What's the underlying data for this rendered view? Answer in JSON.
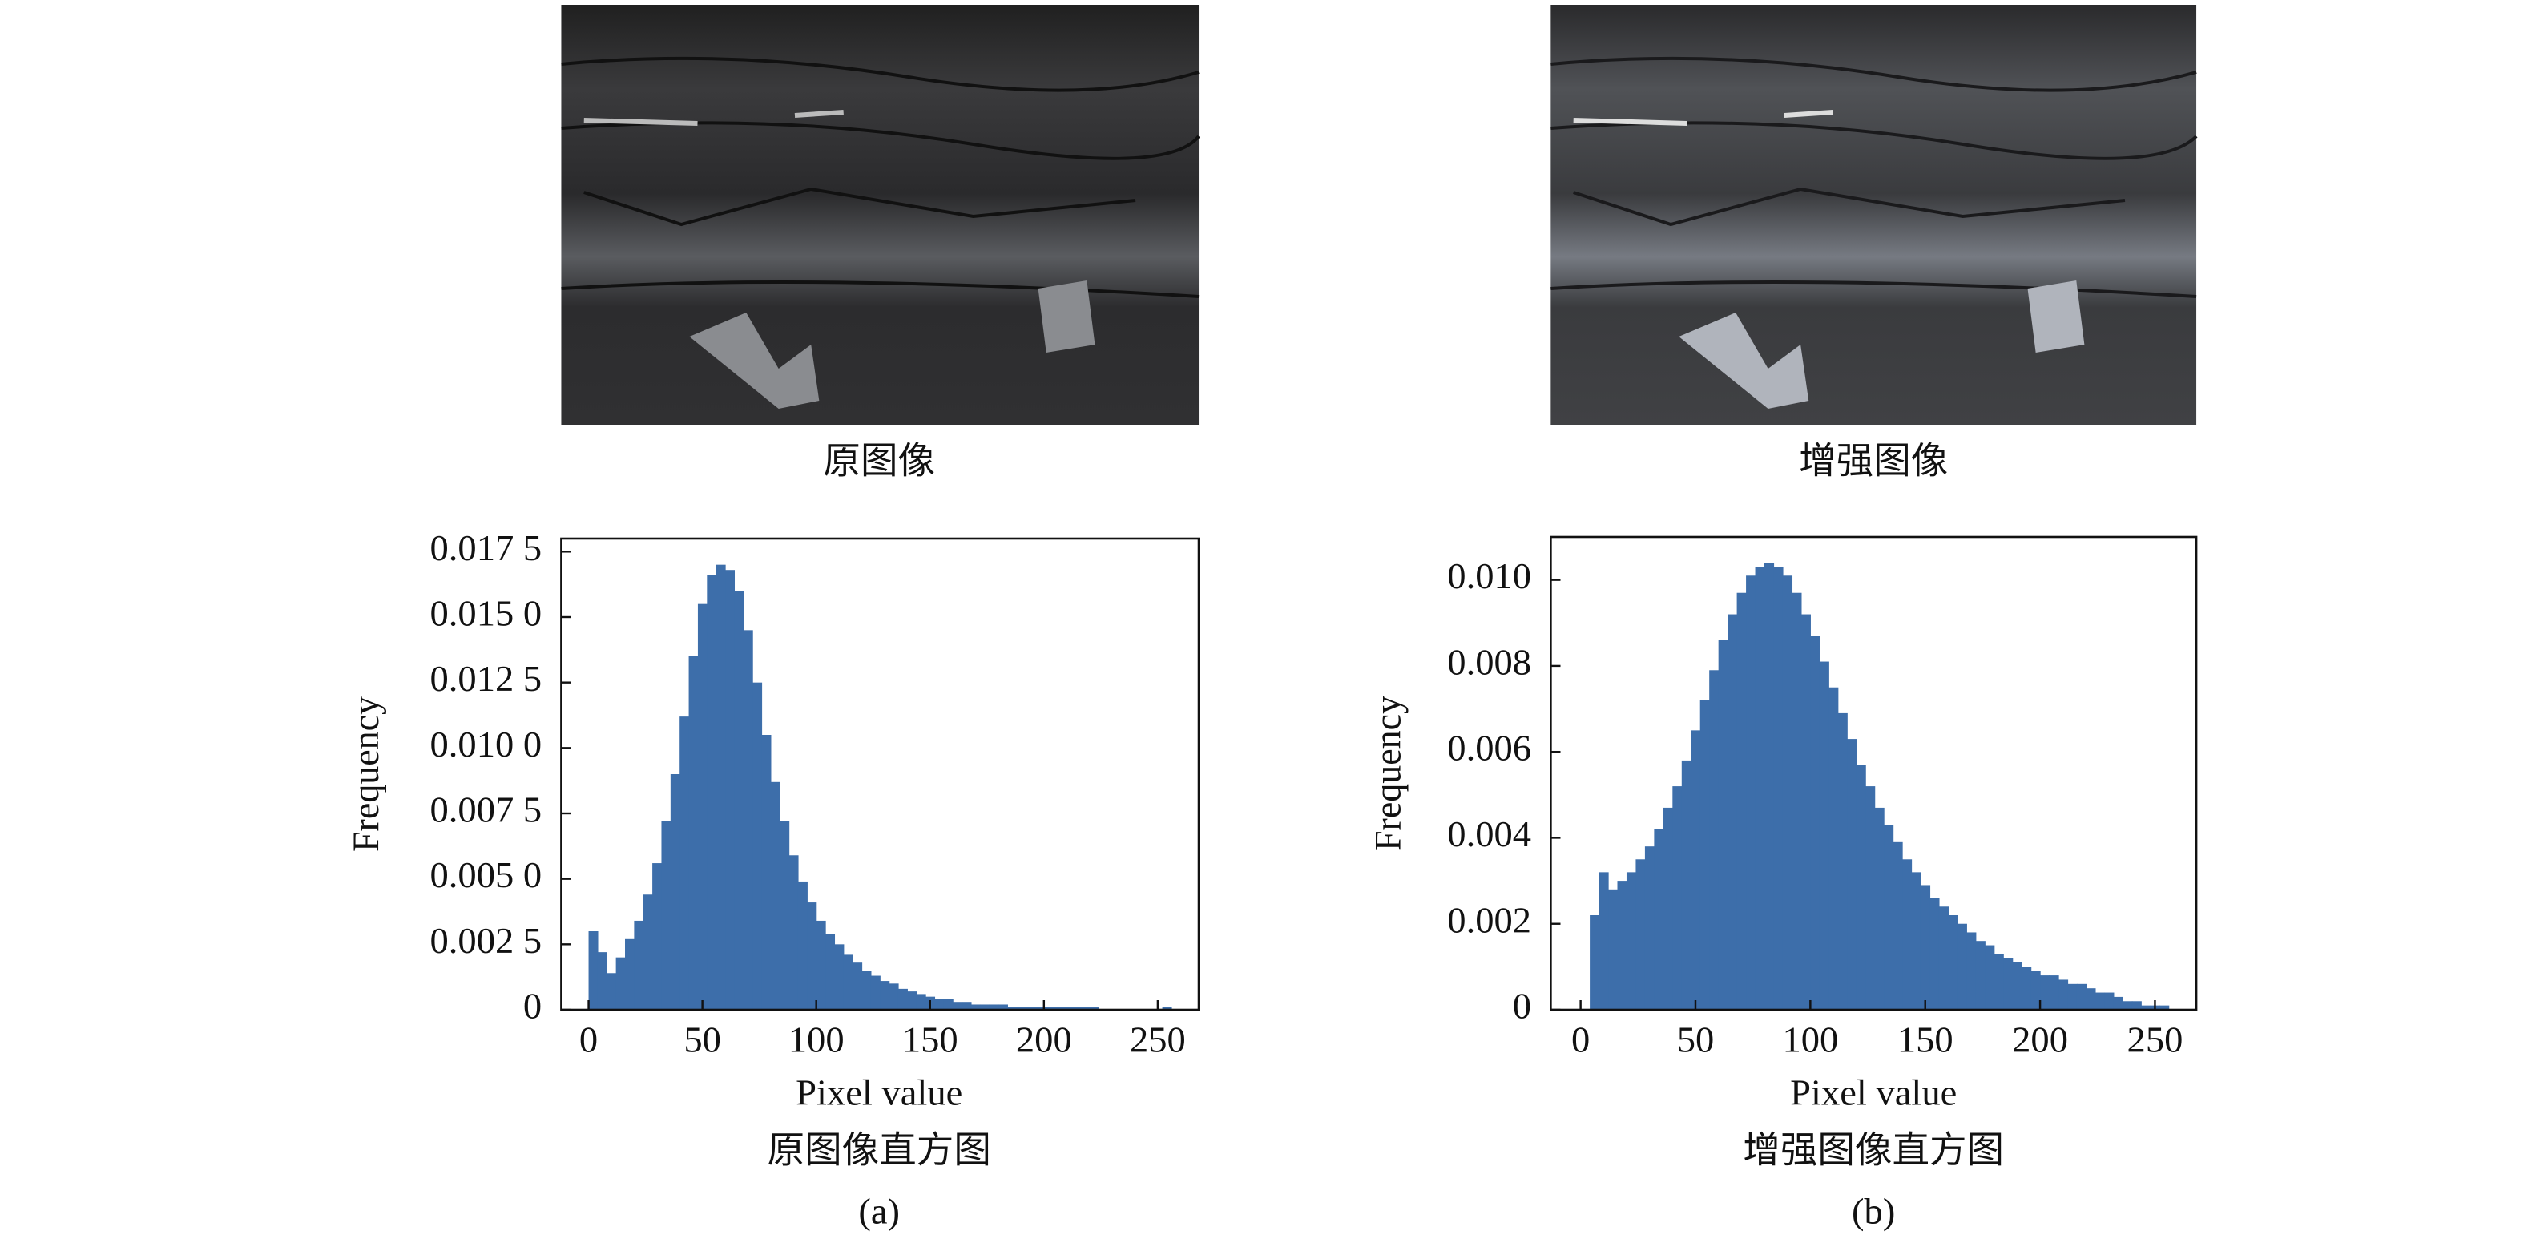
{
  "figure": {
    "image_captions": [
      "原图像",
      "增强图像"
    ],
    "panel_labels": [
      "(a)",
      "(b)"
    ]
  },
  "chart_data": [
    {
      "type": "histogram",
      "title": "原图像直方图",
      "x_label": "Pixel value",
      "y_label": "Frequency",
      "color": "#3d6eaa",
      "bins": [
        0,
        4,
        8,
        12,
        16,
        20,
        24,
        28,
        32,
        36,
        40,
        44,
        48,
        52,
        56,
        60,
        64,
        68,
        72,
        76,
        80,
        84,
        88,
        92,
        96,
        100,
        104,
        108,
        112,
        116,
        120,
        124,
        128,
        132,
        136,
        140,
        144,
        148,
        152,
        156,
        160,
        164,
        168,
        172,
        176,
        180,
        184,
        188,
        192,
        196,
        200,
        204,
        208,
        212,
        216,
        220,
        224,
        228,
        232,
        236,
        240,
        244,
        248,
        252,
        256
      ],
      "values": [
        0.003,
        0.0022,
        0.0014,
        0.002,
        0.0027,
        0.0034,
        0.0044,
        0.0056,
        0.0072,
        0.009,
        0.0112,
        0.0135,
        0.0155,
        0.0166,
        0.017,
        0.0168,
        0.016,
        0.0145,
        0.0125,
        0.0105,
        0.0087,
        0.0072,
        0.0059,
        0.0049,
        0.0041,
        0.0034,
        0.0029,
        0.0025,
        0.0021,
        0.0018,
        0.0015,
        0.0013,
        0.0011,
        0.001,
        0.0008,
        0.0007,
        0.0006,
        0.0005,
        0.0004,
        0.0004,
        0.0003,
        0.0003,
        0.0002,
        0.0002,
        0.0002,
        0.0002,
        0.0001,
        0.0001,
        0.0001,
        0.0001,
        0.0001,
        0.0001,
        0.0001,
        0.0001,
        0.0001,
        0.0001,
        0,
        0,
        0,
        0,
        0,
        0,
        0,
        0.0001
      ],
      "xlim": [
        -12,
        268
      ],
      "ylim": [
        0,
        0.018
      ],
      "xticks": [
        0,
        50,
        100,
        150,
        200,
        250
      ],
      "yticks": [
        0,
        {
          "value": 0.0025,
          "label": "0.002 5"
        },
        {
          "value": 0.005,
          "label": "0.005 0"
        },
        {
          "value": 0.0075,
          "label": "0.007 5"
        },
        {
          "value": 0.01,
          "label": "0.010 0"
        },
        {
          "value": 0.0125,
          "label": "0.012 5"
        },
        {
          "value": 0.015,
          "label": "0.015 0"
        },
        {
          "value": 0.0175,
          "label": "0.017 5"
        }
      ]
    },
    {
      "type": "histogram",
      "title": "增强图像直方图",
      "x_label": "Pixel value",
      "y_label": "Frequency",
      "color": "#3d6eaa",
      "bins": [
        0,
        4,
        8,
        12,
        16,
        20,
        24,
        28,
        32,
        36,
        40,
        44,
        48,
        52,
        56,
        60,
        64,
        68,
        72,
        76,
        80,
        84,
        88,
        92,
        96,
        100,
        104,
        108,
        112,
        116,
        120,
        124,
        128,
        132,
        136,
        140,
        144,
        148,
        152,
        156,
        160,
        164,
        168,
        172,
        176,
        180,
        184,
        188,
        192,
        196,
        200,
        204,
        208,
        212,
        216,
        220,
        224,
        228,
        232,
        236,
        240,
        244,
        248,
        252,
        256
      ],
      "values": [
        0,
        0.0022,
        0.0032,
        0.0028,
        0.003,
        0.0032,
        0.0035,
        0.0038,
        0.0042,
        0.0047,
        0.0052,
        0.0058,
        0.0065,
        0.0072,
        0.0079,
        0.0086,
        0.0092,
        0.0097,
        0.0101,
        0.0103,
        0.0104,
        0.0103,
        0.0101,
        0.0097,
        0.0092,
        0.0087,
        0.0081,
        0.0075,
        0.0069,
        0.0063,
        0.0057,
        0.0052,
        0.0047,
        0.0043,
        0.0039,
        0.0035,
        0.0032,
        0.0029,
        0.0026,
        0.0024,
        0.0022,
        0.002,
        0.0018,
        0.0016,
        0.0015,
        0.0013,
        0.0012,
        0.0011,
        0.001,
        0.0009,
        0.0008,
        0.0008,
        0.0007,
        0.0006,
        0.0006,
        0.0005,
        0.0004,
        0.0004,
        0.0003,
        0.0002,
        0.0002,
        0.0001,
        0.0001,
        0.0001
      ],
      "xlim": [
        -13,
        268
      ],
      "ylim": [
        0,
        0.011
      ],
      "xticks": [
        0,
        50,
        100,
        150,
        200,
        250
      ],
      "yticks": [
        0,
        0.002,
        0.004,
        0.006,
        0.008,
        {
          "value": 0.01,
          "label": "0.010"
        }
      ]
    }
  ]
}
